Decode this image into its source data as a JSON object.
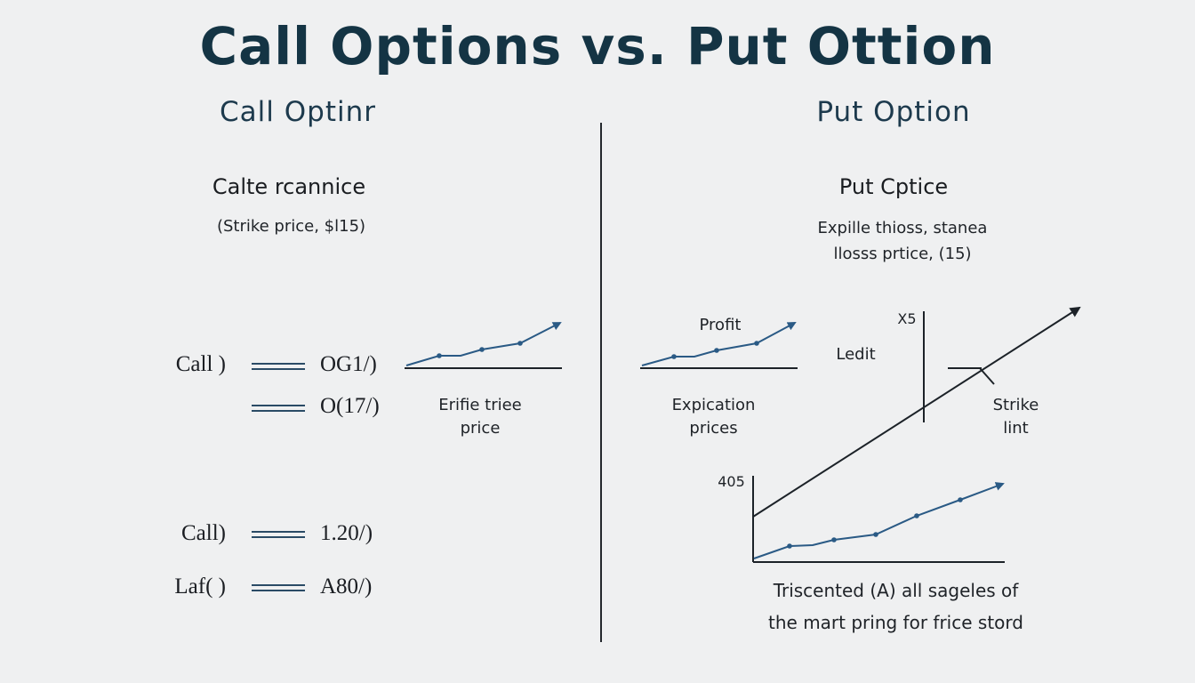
{
  "title": "Call Options vs. Put Ottion",
  "left": {
    "heading": "Call Optinr",
    "subheading": "Calte rcannice",
    "caption": "(Strike price, $l15)",
    "rows": [
      {
        "label": "Call )",
        "value": "OG1/)"
      },
      {
        "label": "",
        "value": "O(17/)"
      },
      {
        "label": "Call)",
        "value": "1.20/)"
      },
      {
        "label": "Laf( )",
        "value": "A80/)"
      }
    ],
    "chart_caption": [
      "Erifie triee",
      "price"
    ]
  },
  "right": {
    "heading": "Put Option",
    "subheading": "Put Cptice",
    "caption": [
      "Expille thioss, stanea",
      "llosss prtice, (15)"
    ],
    "profit_label": "Profit",
    "expiration_label": [
      "Expication",
      "prices"
    ],
    "ledit_label": "Ledit",
    "x5_label": "X5",
    "strike_label": [
      "Strike",
      "lint"
    ],
    "y_tick": "405",
    "bottom_caption": [
      "Triscented (A) all sageles of",
      "the mart pring for frice stord"
    ]
  },
  "colors": {
    "title": "#143444",
    "line_accent": "#2a5a85",
    "axis": "#1c2228"
  }
}
